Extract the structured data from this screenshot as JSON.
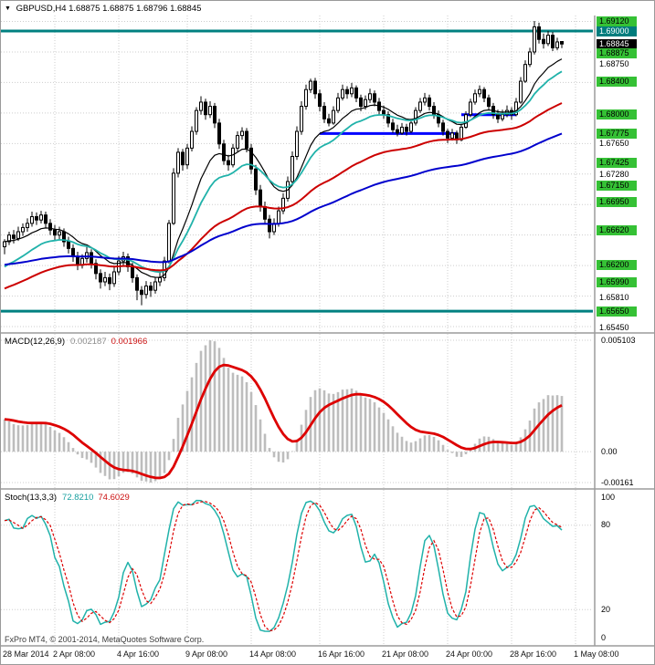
{
  "title": {
    "symbol": "GBPUSD,H4",
    "ohlc": "1.68875 1.68875 1.68796 1.68845"
  },
  "colors": {
    "background": "#ffffff",
    "grid": "#cdcdcd",
    "candle_up": "#ffffff",
    "candle_down": "#000000",
    "candle_outline": "#000000",
    "teal_level": "#008080",
    "blue_level": "#0000ff",
    "label_green_bg": "#35c135",
    "label_teal_bg": "#007d7d",
    "label_black_bg": "#000000",
    "macd_histogram": "#bdbdbd",
    "macd_signal": "#dd0000",
    "stoch_k": "#20b2aa",
    "stoch_d": "#dd0000"
  },
  "chart_data": [
    {
      "type": "candlestick",
      "title": "GBPUSD,H4",
      "ylim": [
        1.654,
        1.69186
      ],
      "x_labels": [
        {
          "text": "28 Mar 2014",
          "bar": 0
        },
        {
          "text": "2 Apr 08:00",
          "bar": 11
        },
        {
          "text": "4 Apr 16:00",
          "bar": 25
        },
        {
          "text": "9 Apr 08:00",
          "bar": 40
        },
        {
          "text": "14 Apr 08:00",
          "bar": 54
        },
        {
          "text": "16 Apr 16:00",
          "bar": 69
        },
        {
          "text": "21 Apr 08:00",
          "bar": 83
        },
        {
          "text": "24 Apr 00:00",
          "bar": 97
        },
        {
          "text": "28 Apr 16:00",
          "bar": 111
        },
        {
          "text": "1 May 08:00",
          "bar": 125
        }
      ],
      "right_axis_labels": [
        {
          "text": "1.69120",
          "style": "green"
        },
        {
          "text": "1.69000",
          "style": "teal"
        },
        {
          "text": "1.68845",
          "style": "black"
        },
        {
          "text": "1.68875",
          "style": "green",
          "dy": 13
        },
        {
          "text": "1.68750",
          "style": "plain",
          "dy": 14
        },
        {
          "text": "1.68400",
          "style": "green"
        },
        {
          "text": "1.68000",
          "style": "green"
        },
        {
          "text": "1.67775",
          "style": "green"
        },
        {
          "text": "1.67650",
          "style": "plain"
        },
        {
          "text": "1.67425",
          "style": "green"
        },
        {
          "text": "1.67280",
          "style": "plain"
        },
        {
          "text": "1.67150",
          "style": "green"
        },
        {
          "text": "1.66950",
          "style": "green"
        },
        {
          "text": "1.66620",
          "style": "green"
        },
        {
          "text": "1.66200",
          "style": "green"
        },
        {
          "text": "1.65990",
          "style": "green"
        },
        {
          "text": "1.65810",
          "style": "plain"
        },
        {
          "text": "1.65650",
          "style": "green"
        },
        {
          "text": "1.65450",
          "style": "plain"
        }
      ],
      "levels": {
        "teal_lines": [
          1.69,
          1.6565
        ],
        "blue_segments": [
          {
            "price": 1.67775,
            "from_bar": 69,
            "to_bar": 99
          },
          {
            "price": 1.68,
            "from_bar": 100,
            "to_bar": 112
          }
        ]
      },
      "moving_averages": [
        {
          "name": "ma-fast-black",
          "period": 13,
          "color": "#000000",
          "width": 1.2
        },
        {
          "name": "ma-teal",
          "period": 21,
          "color": "#20b2aa",
          "width": 1.8
        },
        {
          "name": "ma-red",
          "period": 55,
          "color": "#cc0000",
          "width": 2
        },
        {
          "name": "ma-blue",
          "period": 100,
          "color": "#0000cd",
          "width": 2
        }
      ],
      "candles": [
        [
          1.6642,
          1.6651,
          1.6633,
          1.6648
        ],
        [
          1.6648,
          1.666,
          1.6644,
          1.6656
        ],
        [
          1.6656,
          1.6662,
          1.6646,
          1.6652
        ],
        [
          1.6652,
          1.6666,
          1.6649,
          1.666
        ],
        [
          1.666,
          1.667,
          1.6655,
          1.6665
        ],
        [
          1.6665,
          1.6676,
          1.666,
          1.667
        ],
        [
          1.667,
          1.6684,
          1.6666,
          1.6678
        ],
        [
          1.6678,
          1.6683,
          1.6668,
          1.6674
        ],
        [
          1.6674,
          1.6685,
          1.667,
          1.668
        ],
        [
          1.668,
          1.6684,
          1.6664,
          1.667
        ],
        [
          1.667,
          1.6675,
          1.6656,
          1.6662
        ],
        [
          1.6662,
          1.6668,
          1.665,
          1.6656
        ],
        [
          1.6656,
          1.6666,
          1.6651,
          1.666
        ],
        [
          1.666,
          1.6664,
          1.6642,
          1.6648
        ],
        [
          1.6648,
          1.6654,
          1.6634,
          1.664
        ],
        [
          1.664,
          1.6645,
          1.6624,
          1.663
        ],
        [
          1.663,
          1.6636,
          1.6614,
          1.662
        ],
        [
          1.662,
          1.6633,
          1.6616,
          1.6628
        ],
        [
          1.6628,
          1.6642,
          1.6623,
          1.6635
        ],
        [
          1.6635,
          1.6639,
          1.6616,
          1.6622
        ],
        [
          1.6622,
          1.6627,
          1.6603,
          1.661
        ],
        [
          1.661,
          1.6615,
          1.6592,
          1.66
        ],
        [
          1.66,
          1.6612,
          1.6595,
          1.6605
        ],
        [
          1.6605,
          1.661,
          1.659,
          1.6598
        ],
        [
          1.6598,
          1.6618,
          1.6594,
          1.6612
        ],
        [
          1.6612,
          1.6631,
          1.6608,
          1.6625
        ],
        [
          1.6625,
          1.6636,
          1.6619,
          1.663
        ],
        [
          1.663,
          1.6634,
          1.6612,
          1.6618
        ],
        [
          1.6618,
          1.6623,
          1.6599,
          1.6605
        ],
        [
          1.6605,
          1.6609,
          1.6578,
          1.659
        ],
        [
          1.659,
          1.6595,
          1.6572,
          1.6585
        ],
        [
          1.6585,
          1.6601,
          1.658,
          1.6595
        ],
        [
          1.6595,
          1.66,
          1.6582,
          1.659
        ],
        [
          1.659,
          1.6606,
          1.6586,
          1.66
        ],
        [
          1.66,
          1.6611,
          1.6595,
          1.6605
        ],
        [
          1.6605,
          1.663,
          1.6601,
          1.6625
        ],
        [
          1.6625,
          1.6674,
          1.6622,
          1.667
        ],
        [
          1.667,
          1.6736,
          1.6668,
          1.673
        ],
        [
          1.673,
          1.676,
          1.6725,
          1.6755
        ],
        [
          1.6755,
          1.6759,
          1.6733,
          1.674
        ],
        [
          1.674,
          1.6765,
          1.6735,
          1.676
        ],
        [
          1.676,
          1.6786,
          1.6756,
          1.678
        ],
        [
          1.678,
          1.6809,
          1.6776,
          1.6805
        ],
        [
          1.6805,
          1.6822,
          1.68,
          1.6815
        ],
        [
          1.6815,
          1.6819,
          1.6794,
          1.68
        ],
        [
          1.68,
          1.6816,
          1.6796,
          1.681
        ],
        [
          1.681,
          1.6814,
          1.6784,
          1.679
        ],
        [
          1.679,
          1.6795,
          1.6759,
          1.6765
        ],
        [
          1.6765,
          1.677,
          1.674,
          1.6745
        ],
        [
          1.6745,
          1.6752,
          1.6733,
          1.674
        ],
        [
          1.674,
          1.6765,
          1.6737,
          1.676
        ],
        [
          1.676,
          1.678,
          1.6756,
          1.6775
        ],
        [
          1.6775,
          1.6785,
          1.677,
          1.678
        ],
        [
          1.678,
          1.6784,
          1.6755,
          1.676
        ],
        [
          1.676,
          1.6765,
          1.6729,
          1.6735
        ],
        [
          1.6735,
          1.674,
          1.6704,
          1.671
        ],
        [
          1.671,
          1.6716,
          1.6684,
          1.669
        ],
        [
          1.669,
          1.6696,
          1.6669,
          1.6675
        ],
        [
          1.6675,
          1.668,
          1.6652,
          1.666
        ],
        [
          1.666,
          1.6676,
          1.6656,
          1.667
        ],
        [
          1.667,
          1.669,
          1.6666,
          1.6685
        ],
        [
          1.6685,
          1.6706,
          1.6681,
          1.67
        ],
        [
          1.67,
          1.6726,
          1.6696,
          1.672
        ],
        [
          1.672,
          1.6756,
          1.6716,
          1.675
        ],
        [
          1.675,
          1.6786,
          1.6746,
          1.678
        ],
        [
          1.678,
          1.6816,
          1.6776,
          1.681
        ],
        [
          1.681,
          1.6836,
          1.6806,
          1.683
        ],
        [
          1.683,
          1.6843,
          1.6826,
          1.684
        ],
        [
          1.684,
          1.6844,
          1.6819,
          1.6825
        ],
        [
          1.6825,
          1.683,
          1.6804,
          1.681
        ],
        [
          1.681,
          1.6815,
          1.679,
          1.6795
        ],
        [
          1.6795,
          1.6801,
          1.6786,
          1.679
        ],
        [
          1.679,
          1.681,
          1.6788,
          1.6805
        ],
        [
          1.6805,
          1.6826,
          1.6802,
          1.682
        ],
        [
          1.682,
          1.6836,
          1.6817,
          1.683
        ],
        [
          1.683,
          1.6834,
          1.6819,
          1.6825
        ],
        [
          1.6825,
          1.6838,
          1.6821,
          1.6832
        ],
        [
          1.6832,
          1.6835,
          1.6815,
          1.682
        ],
        [
          1.682,
          1.6824,
          1.6804,
          1.681
        ],
        [
          1.681,
          1.6823,
          1.6806,
          1.6818
        ],
        [
          1.6818,
          1.6831,
          1.6814,
          1.6825
        ],
        [
          1.6825,
          1.6829,
          1.681,
          1.6815
        ],
        [
          1.6815,
          1.682,
          1.68,
          1.6805
        ],
        [
          1.6805,
          1.6811,
          1.6795,
          1.68
        ],
        [
          1.68,
          1.6804,
          1.6785,
          1.679
        ],
        [
          1.679,
          1.6795,
          1.6778,
          1.6782
        ],
        [
          1.6782,
          1.6788,
          1.6774,
          1.6778
        ],
        [
          1.6778,
          1.679,
          1.6776,
          1.6785
        ],
        [
          1.6785,
          1.6789,
          1.6775,
          1.678
        ],
        [
          1.678,
          1.6795,
          1.6778,
          1.679
        ],
        [
          1.679,
          1.6809,
          1.6787,
          1.6805
        ],
        [
          1.6805,
          1.682,
          1.6802,
          1.6815
        ],
        [
          1.6815,
          1.6826,
          1.6811,
          1.682
        ],
        [
          1.682,
          1.6824,
          1.6805,
          1.681
        ],
        [
          1.681,
          1.6815,
          1.6795,
          1.68
        ],
        [
          1.68,
          1.6805,
          1.6785,
          1.679
        ],
        [
          1.679,
          1.6794,
          1.6775,
          1.678
        ],
        [
          1.678,
          1.6783,
          1.6766,
          1.6772
        ],
        [
          1.6772,
          1.6783,
          1.6769,
          1.6778
        ],
        [
          1.6778,
          1.6781,
          1.6765,
          1.677
        ],
        [
          1.677,
          1.6789,
          1.6768,
          1.6785
        ],
        [
          1.6785,
          1.6804,
          1.6783,
          1.68
        ],
        [
          1.68,
          1.6819,
          1.6797,
          1.6815
        ],
        [
          1.6815,
          1.683,
          1.6812,
          1.6825
        ],
        [
          1.6825,
          1.6835,
          1.6821,
          1.683
        ],
        [
          1.683,
          1.6833,
          1.6815,
          1.682
        ],
        [
          1.682,
          1.6824,
          1.6805,
          1.681
        ],
        [
          1.681,
          1.6814,
          1.6795,
          1.68
        ],
        [
          1.68,
          1.6806,
          1.679,
          1.6795
        ],
        [
          1.6795,
          1.6806,
          1.6792,
          1.68
        ],
        [
          1.68,
          1.6811,
          1.6797,
          1.6805
        ],
        [
          1.6805,
          1.6809,
          1.6794,
          1.68
        ],
        [
          1.68,
          1.682,
          1.6798,
          1.6815
        ],
        [
          1.6815,
          1.6845,
          1.6813,
          1.684
        ],
        [
          1.684,
          1.6865,
          1.6838,
          1.686
        ],
        [
          1.686,
          1.688,
          1.6857,
          1.6875
        ],
        [
          1.6875,
          1.6912,
          1.6872,
          1.6905
        ],
        [
          1.6905,
          1.691,
          1.6885,
          1.689
        ],
        [
          1.689,
          1.6897,
          1.6879,
          1.6885
        ],
        [
          1.6885,
          1.69,
          1.6882,
          1.6895
        ],
        [
          1.6895,
          1.6899,
          1.6876,
          1.688
        ],
        [
          1.688,
          1.6892,
          1.6877,
          1.6887
        ],
        [
          1.68875,
          1.68875,
          1.68796,
          1.68845
        ]
      ]
    },
    {
      "type": "macd",
      "label": "MACD(12,26,9)",
      "values": [
        "0.002187",
        "0.001966"
      ],
      "params": {
        "fast": 12,
        "slow": 26,
        "signal": 9
      },
      "axis_labels": [
        "0.005103",
        "0.00",
        "-0.00161"
      ]
    },
    {
      "type": "stochastic",
      "label": "Stoch(13,3,3)",
      "values": [
        "72.8210",
        "74.6029"
      ],
      "params": {
        "k_period": 13,
        "slowing": 3,
        "d_period": 3
      },
      "axis_labels": [
        "100",
        "80",
        "20",
        "0"
      ]
    }
  ],
  "footer": {
    "copyright": "FxPro MT4, © 2001-2014, MetaQuotes Software Corp."
  }
}
